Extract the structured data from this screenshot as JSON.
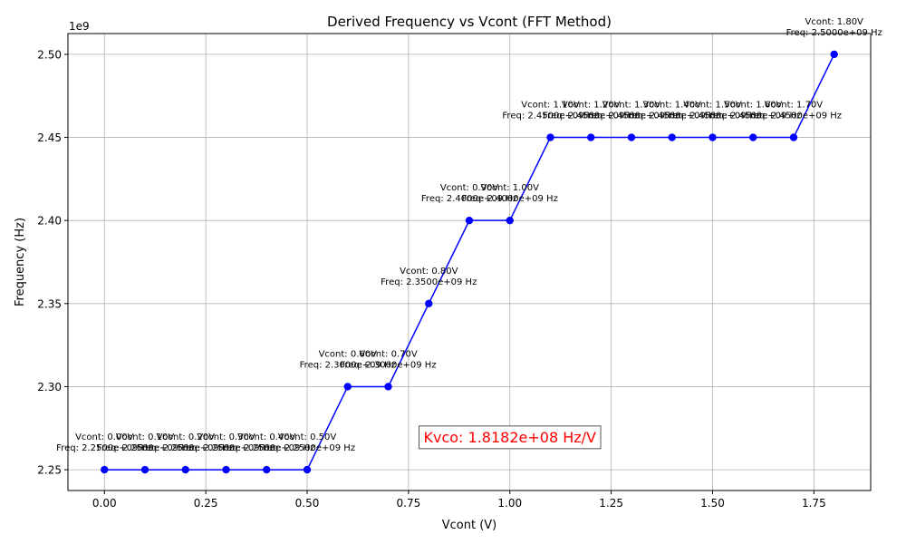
{
  "chart_data": {
    "type": "line",
    "title": "Derived Frequency vs Vcont (FFT Method)",
    "xlabel": "Vcont (V)",
    "ylabel": "Frequency (Hz)",
    "y_offset_label": "1e9",
    "xlim": [
      -0.09,
      1.89
    ],
    "ylim": [
      2.2375,
      2.5125
    ],
    "x_ticks": [
      0.0,
      0.25,
      0.5,
      0.75,
      1.0,
      1.25,
      1.5,
      1.75
    ],
    "x_tick_labels": [
      "0.00",
      "0.25",
      "0.50",
      "0.75",
      "1.00",
      "1.25",
      "1.50",
      "1.75"
    ],
    "y_ticks": [
      2.25,
      2.3,
      2.35,
      2.4,
      2.45,
      2.5
    ],
    "y_tick_labels": [
      "2.25",
      "2.30",
      "2.35",
      "2.40",
      "2.45",
      "2.50"
    ],
    "grid": true,
    "series": [
      {
        "color": "#0000ff",
        "x": [
          0.0,
          0.1,
          0.2,
          0.3,
          0.4,
          0.5,
          0.6,
          0.7,
          0.8,
          0.9,
          1.0,
          1.1,
          1.2,
          1.3,
          1.4,
          1.5,
          1.6,
          1.7,
          1.8
        ],
        "y": [
          2.25,
          2.25,
          2.25,
          2.25,
          2.25,
          2.25,
          2.3,
          2.3,
          2.35,
          2.4,
          2.4,
          2.45,
          2.45,
          2.45,
          2.45,
          2.45,
          2.45,
          2.45,
          2.5
        ]
      }
    ],
    "annotations": [
      {
        "line1": "Vcont: 0.00V",
        "line2": "Freq: 2.2500e+09 Hz"
      },
      {
        "line1": "Vcont: 0.10V",
        "line2": "Freq: 2.2500e+09 Hz"
      },
      {
        "line1": "Vcont: 0.20V",
        "line2": "Freq: 2.2500e+09 Hz"
      },
      {
        "line1": "Vcont: 0.30V",
        "line2": "Freq: 2.2500e+09 Hz"
      },
      {
        "line1": "Vcont: 0.40V",
        "line2": "Freq: 2.2500e+09 Hz"
      },
      {
        "line1": "Vcont: 0.50V",
        "line2": "Freq: 2.2500e+09 Hz"
      },
      {
        "line1": "Vcont: 0.60V",
        "line2": "Freq: 2.3000e+09 Hz"
      },
      {
        "line1": "Vcont: 0.70V",
        "line2": "Freq: 2.3000e+09 Hz"
      },
      {
        "line1": "Vcont: 0.80V",
        "line2": "Freq: 2.3500e+09 Hz"
      },
      {
        "line1": "Vcont: 0.90V",
        "line2": "Freq: 2.4000e+09 Hz"
      },
      {
        "line1": "Vcont: 1.00V",
        "line2": "Freq: 2.4000e+09 Hz"
      },
      {
        "line1": "Vcont: 1.10V",
        "line2": "Freq: 2.4500e+09 Hz"
      },
      {
        "line1": "Vcont: 1.20V",
        "line2": "Freq: 2.4500e+09 Hz"
      },
      {
        "line1": "Vcont: 1.30V",
        "line2": "Freq: 2.4500e+09 Hz"
      },
      {
        "line1": "Vcont: 1.40V",
        "line2": "Freq: 2.4500e+09 Hz"
      },
      {
        "line1": "Vcont: 1.50V",
        "line2": "Freq: 2.4500e+09 Hz"
      },
      {
        "line1": "Vcont: 1.60V",
        "line2": "Freq: 2.4500e+09 Hz"
      },
      {
        "line1": "Vcont: 1.70V",
        "line2": "Freq: 2.4500e+09 Hz"
      },
      {
        "line1": "Vcont: 1.80V",
        "line2": "Freq: 2.5000e+09 Hz"
      }
    ],
    "textbox": {
      "text": "Kvco: 1.8182e+08 Hz/V",
      "color": "#ff0000",
      "x": 1.0,
      "y": 2.2665
    }
  }
}
